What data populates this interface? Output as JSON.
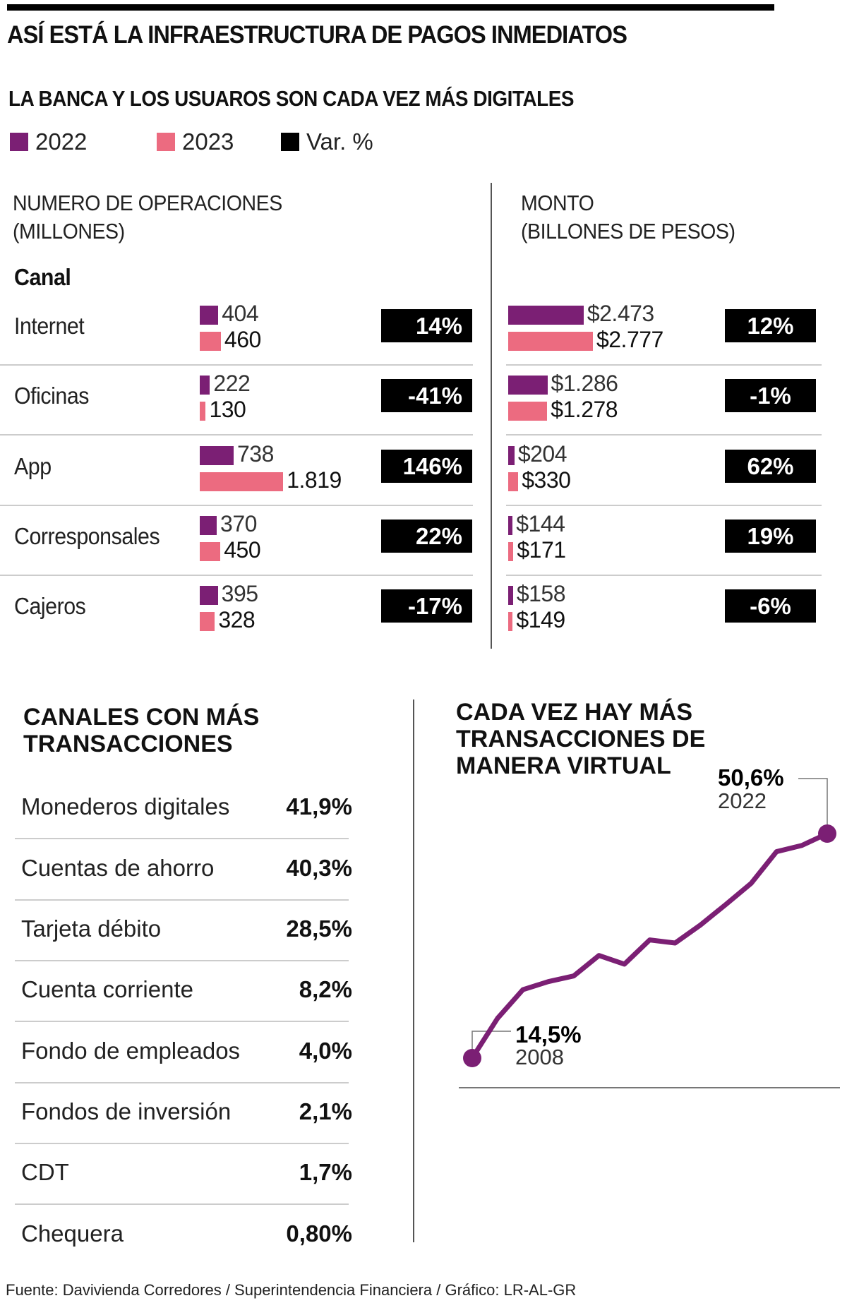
{
  "title": "ASÍ ESTÁ LA INFRAESTRUCTURA DE PAGOS INMEDIATOS",
  "subtitle": "LA BANCA Y LOS USUAROS SON CADA VEZ MÁS DIGITALES",
  "legend": [
    {
      "label": "2022",
      "color": "#7b1f74"
    },
    {
      "label": "2023",
      "color": "#ec6b80"
    },
    {
      "label": "Var. %",
      "color": "#000000"
    }
  ],
  "chart_data": [
    {
      "type": "bar",
      "title": "NUMERO DE OPERACIONES (MILLONES)",
      "title_lines": [
        "NUMERO DE OPERACIONES",
        "(MILLONES)"
      ],
      "category_header": "Canal",
      "categories": [
        "Internet",
        "Oficinas",
        "App",
        "Corresponsales",
        "Cajeros"
      ],
      "series": [
        {
          "name": "2022",
          "values": [
            404,
            222,
            738,
            370,
            395
          ],
          "labels": [
            "404",
            "222",
            "738",
            "370",
            "395"
          ]
        },
        {
          "name": "2023",
          "values": [
            460,
            130,
            1819,
            450,
            328
          ],
          "labels": [
            "460",
            "130",
            "1.819",
            "450",
            "328"
          ]
        }
      ],
      "variation": [
        "14%",
        "-41%",
        "146%",
        "22%",
        "-17%"
      ]
    },
    {
      "type": "bar",
      "title": "MONTO (BILLONES DE PESOS)",
      "title_lines": [
        "MONTO",
        "(BILLONES DE PESOS)"
      ],
      "categories": [
        "Internet",
        "Oficinas",
        "App",
        "Corresponsales",
        "Cajeros"
      ],
      "series": [
        {
          "name": "2022",
          "values": [
            2473,
            1286,
            204,
            144,
            158
          ],
          "labels": [
            "$2.473",
            "$1.286",
            "$204",
            "$144",
            "$158"
          ]
        },
        {
          "name": "2023",
          "values": [
            2777,
            1278,
            330,
            171,
            149
          ],
          "labels": [
            "$2.777",
            "$1.278",
            "$330",
            "$171",
            "$149"
          ]
        }
      ],
      "variation": [
        "12%",
        "-1%",
        "62%",
        "19%",
        "-6%"
      ]
    },
    {
      "type": "table",
      "title": "CANALES CON MÁS TRANSACCIONES",
      "rows": [
        {
          "label": "Monederos digitales",
          "value": "41,9%"
        },
        {
          "label": "Cuentas de ahorro",
          "value": "40,3%"
        },
        {
          "label": "Tarjeta débito",
          "value": "28,5%"
        },
        {
          "label": "Cuenta corriente",
          "value": "8,2%"
        },
        {
          "label": "Fondo de empleados",
          "value": "4,0%"
        },
        {
          "label": "Fondos de inversión",
          "value": "2,1%"
        },
        {
          "label": "CDT",
          "value": "1,7%"
        },
        {
          "label": "Chequera",
          "value": "0,80%"
        }
      ]
    },
    {
      "type": "line",
      "title": "CADA VEZ HAY MÁS TRANSACCIONES DE MANERA VIRTUAL",
      "title_lines": [
        "CADA VEZ HAY MÁS",
        "TRANSACCIONES DE",
        "MANERA VIRTUAL"
      ],
      "x": [
        2008,
        2009,
        2010,
        2011,
        2012,
        2013,
        2014,
        2015,
        2016,
        2017,
        2018,
        2019,
        2020,
        2021,
        2022
      ],
      "y": [
        14.5,
        20.9,
        25.5,
        26.8,
        27.7,
        31.0,
        29.6,
        33.5,
        33.0,
        35.9,
        39.2,
        42.6,
        47.7,
        48.7,
        50.6
      ],
      "color": "#7b1f74",
      "grid": false,
      "annotations": [
        {
          "value": "14,5%",
          "year": "2008"
        },
        {
          "value": "50,6%",
          "year": "2022"
        }
      ]
    }
  ],
  "source": "Fuente: Davivienda Corredores / Superintendencia Financiera / Gráfico: LR-AL-GR"
}
